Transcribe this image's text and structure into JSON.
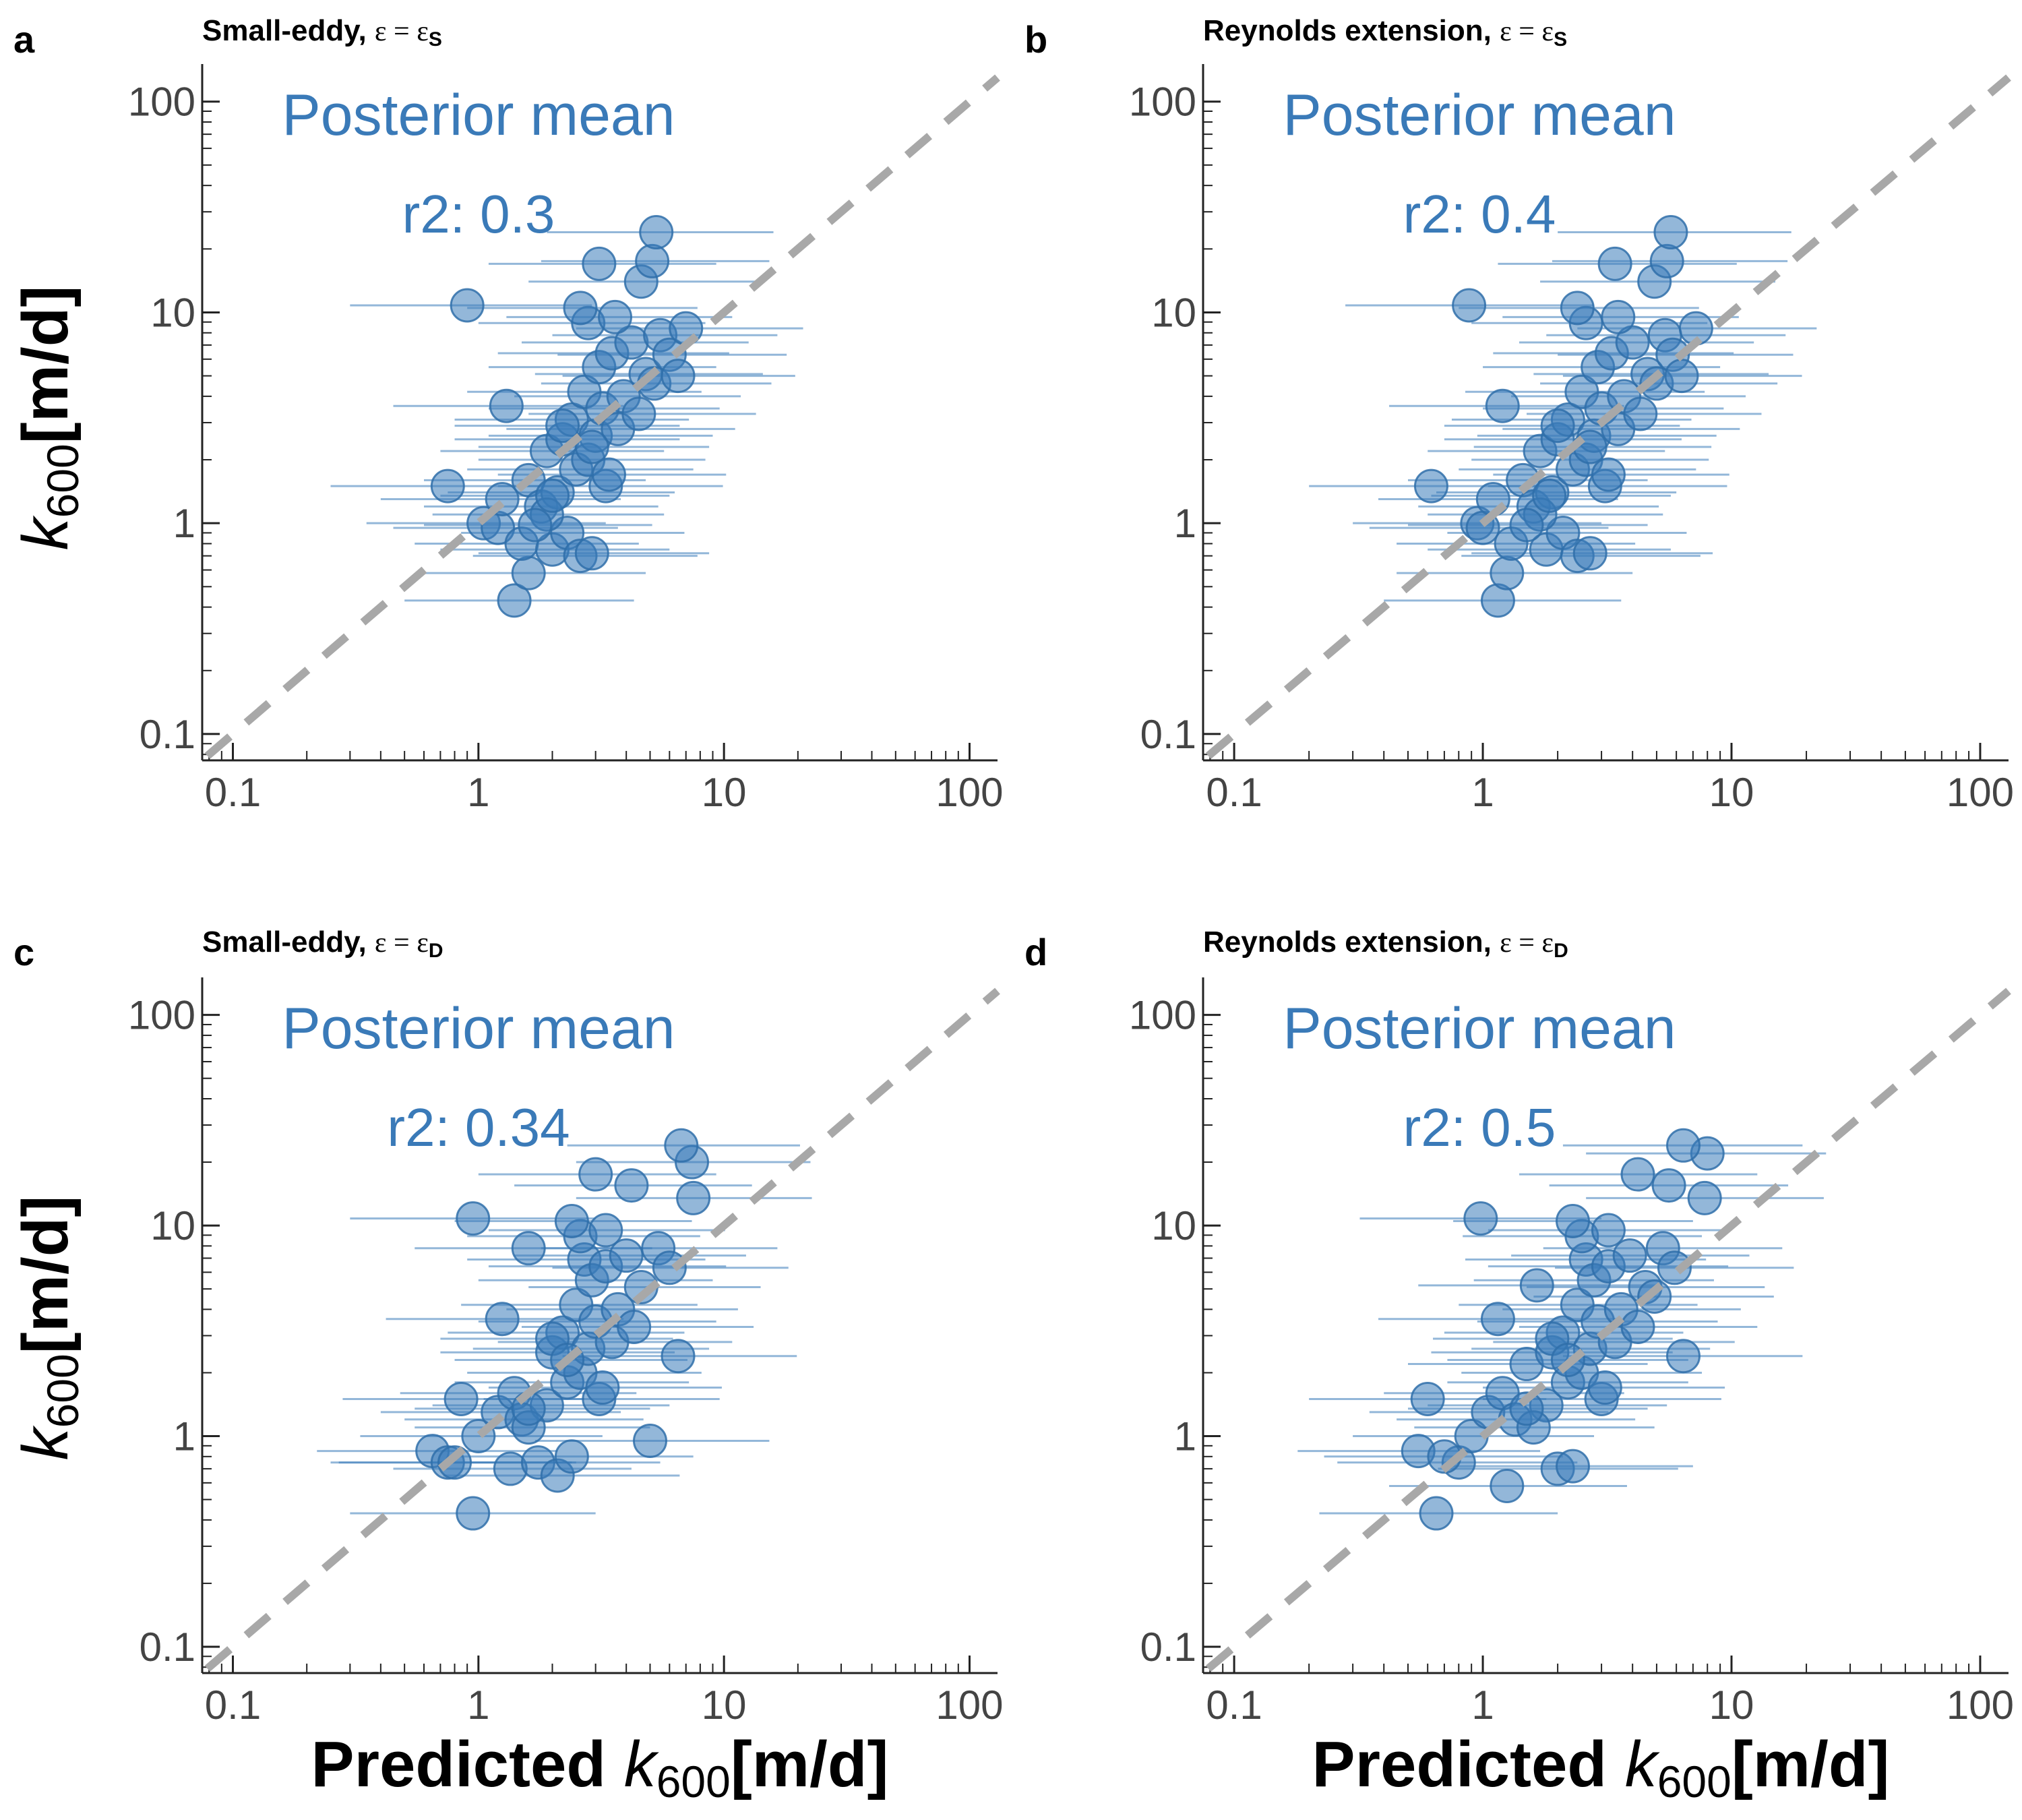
{
  "figure": {
    "common_xlabel": {
      "prefix": "Predicted ",
      "k": "k",
      "sub": "600",
      "unit": "[m/d]"
    },
    "common_ylabel": {
      "k": "k",
      "sub": "600",
      "unit": "[m/d]"
    }
  },
  "chart_data": [
    {
      "panel": "a",
      "type": "scatter",
      "title": "Small-eddy, ",
      "title_eps": "ε = ε",
      "title_sub": "S",
      "annotation": "Posterior mean",
      "r2_label": "r2: 0.3",
      "xlabel": "",
      "ylabel": "k600[m/d]",
      "xscale": "log",
      "yscale": "log",
      "xlim": [
        0.075,
        130
      ],
      "ylim": [
        0.075,
        140
      ],
      "x_ticks": [
        "0.1",
        "1",
        "10",
        "100"
      ],
      "y_ticks": [
        "0.1",
        "1",
        "10",
        "100"
      ],
      "identity_line": true,
      "x": [
        0.9,
        1.4,
        1.6,
        0.75,
        1.05,
        1.2,
        1.25,
        1.5,
        1.6,
        1.8,
        1.9,
        2.0,
        2.1,
        2.2,
        2.3,
        2.4,
        2.5,
        2.6,
        2.7,
        2.8,
        2.9,
        3.0,
        3.1,
        3.2,
        3.3,
        3.5,
        3.7,
        3.9,
        4.2,
        4.5,
        4.8,
        5.2,
        5.5,
        6.0,
        6.5,
        7.0,
        3.1,
        4.6,
        5.1,
        5.3,
        1.9,
        2.2,
        2.8,
        3.4,
        2.6,
        1.3,
        1.7,
        2.0,
        2.9,
        3.6
      ],
      "y": [
        10.8,
        0.43,
        0.58,
        1.5,
        1.0,
        0.95,
        1.3,
        0.8,
        1.6,
        1.2,
        2.2,
        0.75,
        1.4,
        2.5,
        0.9,
        3.1,
        1.8,
        0.7,
        4.2,
        2.0,
        0.72,
        2.6,
        5.5,
        3.5,
        1.5,
        6.4,
        2.8,
        4.0,
        7.2,
        3.3,
        5.1,
        4.6,
        7.8,
        6.3,
        5.0,
        8.4,
        17.0,
        14.0,
        17.5,
        24.0,
        1.1,
        2.9,
        8.9,
        1.7,
        10.5,
        3.6,
        0.98,
        1.35,
        2.3,
        9.5
      ],
      "x_lo": [
        0.3,
        0.5,
        0.6,
        0.25,
        0.35,
        0.45,
        0.4,
        0.55,
        0.6,
        0.6,
        0.7,
        0.7,
        0.75,
        0.8,
        0.85,
        0.8,
        0.9,
        0.95,
        0.9,
        1.0,
        1.0,
        1.1,
        1.1,
        1.1,
        1.2,
        1.2,
        1.3,
        1.4,
        1.5,
        1.6,
        1.7,
        1.8,
        2.0,
        2.1,
        2.2,
        2.5,
        1.1,
        1.6,
        1.8,
        1.9,
        0.65,
        0.8,
        1.0,
        1.2,
        0.9,
        0.45,
        0.6,
        0.7,
        1.0,
        1.3
      ],
      "x_hi": [
        2.9,
        4.3,
        4.8,
        2.3,
        3.3,
        3.7,
        3.8,
        4.5,
        4.8,
        5.4,
        5.7,
        6.0,
        6.3,
        6.6,
        6.9,
        7.2,
        7.5,
        7.8,
        8.1,
        8.4,
        8.7,
        9.0,
        9.3,
        9.6,
        9.9,
        10.5,
        11.1,
        11.7,
        12.6,
        13.5,
        14.4,
        15.6,
        16.5,
        18.0,
        19.5,
        21.0,
        9.3,
        13.8,
        15.3,
        15.9,
        5.7,
        6.6,
        8.4,
        10.2,
        7.8,
        3.9,
        5.1,
        6.0,
        8.7,
        10.8
      ]
    },
    {
      "panel": "b",
      "type": "scatter",
      "title": "Reynolds extension, ",
      "title_eps": "ε = ε",
      "title_sub": "S",
      "annotation": "Posterior mean",
      "r2_label": "r2: 0.4",
      "xlabel": "",
      "ylabel": "",
      "xscale": "log",
      "yscale": "log",
      "xlim": [
        0.075,
        130
      ],
      "ylim": [
        0.075,
        140
      ],
      "x_ticks": [
        "0.1",
        "1",
        "10",
        "100"
      ],
      "y_ticks": [
        "0.1",
        "1",
        "10",
        "100"
      ],
      "identity_line": true,
      "x": [
        0.88,
        1.15,
        1.25,
        0.62,
        0.95,
        1.0,
        1.1,
        1.3,
        1.45,
        1.6,
        1.7,
        1.8,
        1.9,
        2.0,
        2.1,
        2.2,
        2.3,
        2.4,
        2.5,
        2.6,
        2.7,
        2.8,
        2.9,
        3.0,
        3.1,
        3.3,
        3.5,
        3.7,
        4.0,
        4.3,
        4.6,
        5.0,
        5.4,
        5.8,
        6.3,
        7.2,
        3.4,
        4.9,
        5.5,
        5.7,
        1.7,
        2.0,
        2.6,
        3.2,
        2.4,
        1.2,
        1.5,
        1.85,
        2.7,
        3.5
      ],
      "y": [
        10.8,
        0.43,
        0.58,
        1.5,
        1.0,
        0.95,
        1.3,
        0.8,
        1.6,
        1.2,
        2.2,
        0.75,
        1.4,
        2.5,
        0.9,
        3.1,
        1.8,
        0.7,
        4.2,
        2.0,
        0.72,
        2.6,
        5.5,
        3.5,
        1.5,
        6.4,
        2.8,
        4.0,
        7.2,
        3.3,
        5.1,
        4.6,
        7.8,
        6.3,
        5.0,
        8.4,
        17.0,
        14.0,
        17.5,
        24.0,
        1.1,
        2.9,
        8.9,
        1.7,
        10.5,
        3.6,
        0.98,
        1.35,
        2.3,
        9.5
      ],
      "x_lo": [
        0.28,
        0.4,
        0.45,
        0.2,
        0.3,
        0.35,
        0.38,
        0.45,
        0.5,
        0.55,
        0.6,
        0.6,
        0.65,
        0.7,
        0.72,
        0.75,
        0.8,
        0.82,
        0.85,
        0.9,
        0.9,
        0.95,
        1.0,
        1.0,
        1.05,
        1.1,
        1.2,
        1.3,
        1.4,
        1.5,
        1.6,
        1.7,
        1.8,
        2.0,
        2.1,
        2.4,
        1.15,
        1.7,
        1.9,
        2.0,
        0.6,
        0.7,
        0.9,
        1.1,
        0.8,
        0.42,
        0.5,
        0.62,
        0.92,
        1.2
      ],
      "x_hi": [
        2.8,
        3.6,
        4.0,
        2.0,
        3.0,
        3.2,
        3.5,
        4.1,
        4.6,
        5.1,
        5.4,
        5.7,
        6.0,
        6.3,
        6.6,
        6.9,
        7.2,
        7.5,
        7.8,
        8.1,
        8.4,
        8.7,
        9.0,
        9.3,
        9.6,
        10.2,
        10.8,
        11.4,
        12.3,
        13.2,
        14.1,
        15.3,
        16.5,
        17.7,
        19.2,
        22.0,
        10.5,
        15.0,
        16.8,
        17.4,
        5.3,
        6.2,
        8.0,
        9.8,
        7.4,
        3.7,
        4.6,
        5.7,
        8.3,
        10.7
      ]
    },
    {
      "panel": "c",
      "type": "scatter",
      "title": "Small-eddy, ",
      "title_eps": "ε = ε",
      "title_sub": "D",
      "annotation": "Posterior mean",
      "r2_label": "r2: 0.34",
      "xlabel": "Predicted k600[m/d]",
      "ylabel": "k600[m/d]",
      "xscale": "log",
      "yscale": "log",
      "xlim": [
        0.075,
        130
      ],
      "ylim": [
        0.075,
        140
      ],
      "x_ticks": [
        "0.1",
        "1",
        "10",
        "100"
      ],
      "y_ticks": [
        "0.1",
        "1",
        "10",
        "100"
      ],
      "identity_line": true,
      "x": [
        0.95,
        0.95,
        1.35,
        0.65,
        0.75,
        0.85,
        1.0,
        1.2,
        1.4,
        1.5,
        1.6,
        1.75,
        1.9,
        2.0,
        2.1,
        2.2,
        2.3,
        2.4,
        2.5,
        2.6,
        2.7,
        2.8,
        2.9,
        3.0,
        3.1,
        3.3,
        3.5,
        3.7,
        4.0,
        4.3,
        4.6,
        5.0,
        5.4,
        6.0,
        6.5,
        7.5,
        3.0,
        4.2,
        7.4,
        6.7,
        1.6,
        2.0,
        2.6,
        3.2,
        2.4,
        0.8,
        1.25,
        1.6,
        2.3,
        3.3
      ],
      "y": [
        10.8,
        0.43,
        0.7,
        0.85,
        0.75,
        1.5,
        1.0,
        1.3,
        1.6,
        1.2,
        7.8,
        0.75,
        1.4,
        2.5,
        0.65,
        3.1,
        1.8,
        0.8,
        4.2,
        2.0,
        6.9,
        2.6,
        5.5,
        3.5,
        1.5,
        6.4,
        2.8,
        4.0,
        7.2,
        3.3,
        5.1,
        0.95,
        7.8,
        6.3,
        2.4,
        13.5,
        17.5,
        15.5,
        20.0,
        24.0,
        1.1,
        2.9,
        8.9,
        1.7,
        10.5,
        0.75,
        3.6,
        1.35,
        2.3,
        9.5
      ],
      "x_lo": [
        0.3,
        0.3,
        0.45,
        0.22,
        0.25,
        0.28,
        0.33,
        0.4,
        0.48,
        0.5,
        0.55,
        0.6,
        0.65,
        0.7,
        0.72,
        0.75,
        0.8,
        0.82,
        0.85,
        0.9,
        0.9,
        0.95,
        1.0,
        1.0,
        1.05,
        1.1,
        1.2,
        1.3,
        1.4,
        1.5,
        1.6,
        1.7,
        1.8,
        2.0,
        2.2,
        2.5,
        1.0,
        1.4,
        2.5,
        2.3,
        0.55,
        0.7,
        0.9,
        1.1,
        0.8,
        0.27,
        0.42,
        0.55,
        0.8,
        1.1
      ],
      "x_hi": [
        3.0,
        3.0,
        4.2,
        2.1,
        2.4,
        2.7,
        3.2,
        3.8,
        4.4,
        4.7,
        5.1,
        5.5,
        6.0,
        6.3,
        6.6,
        6.9,
        7.2,
        7.5,
        7.8,
        8.1,
        8.4,
        8.7,
        9.0,
        9.3,
        9.6,
        10.2,
        10.8,
        11.4,
        12.3,
        13.2,
        14.1,
        15.3,
        16.5,
        18.3,
        19.8,
        22.8,
        9.3,
        13.0,
        22.5,
        20.4,
        5.0,
        6.2,
        8.0,
        9.8,
        7.4,
        2.5,
        3.9,
        5.0,
        7.1,
        10.1
      ]
    },
    {
      "panel": "d",
      "type": "scatter",
      "title": "Reynolds extension, ",
      "title_eps": "ε = ε",
      "title_sub": "D",
      "annotation": "Posterior mean",
      "r2_label": "r2: 0.5",
      "xlabel": "Predicted k600[m/d]",
      "ylabel": "",
      "xscale": "log",
      "yscale": "log",
      "xlim": [
        0.075,
        130
      ],
      "ylim": [
        0.075,
        140
      ],
      "x_ticks": [
        "0.1",
        "1",
        "10",
        "100"
      ],
      "y_ticks": [
        "0.1",
        "1",
        "10",
        "100"
      ],
      "identity_line": true,
      "x": [
        0.98,
        0.65,
        1.25,
        0.55,
        0.6,
        0.8,
        0.9,
        1.05,
        1.2,
        1.35,
        1.5,
        1.65,
        1.8,
        1.9,
        2.0,
        2.1,
        2.2,
        2.3,
        2.4,
        2.5,
        2.6,
        2.7,
        2.8,
        2.9,
        3.0,
        3.2,
        3.4,
        3.6,
        3.9,
        4.2,
        4.5,
        4.9,
        5.3,
        5.9,
        6.4,
        7.8,
        4.2,
        5.6,
        8.0,
        6.4,
        1.6,
        1.9,
        2.5,
        3.1,
        2.3,
        0.7,
        1.15,
        1.5,
        2.2,
        3.2
      ],
      "y": [
        10.8,
        0.43,
        0.58,
        0.85,
        1.5,
        0.75,
        1.0,
        1.3,
        1.6,
        1.2,
        2.2,
        5.2,
        1.4,
        2.5,
        0.7,
        3.1,
        1.8,
        0.72,
        4.2,
        2.0,
        6.9,
        2.6,
        5.5,
        3.5,
        1.5,
        6.4,
        2.8,
        4.0,
        7.2,
        3.3,
        5.1,
        4.6,
        7.8,
        6.3,
        2.4,
        13.5,
        17.5,
        15.5,
        22.0,
        24.0,
        1.1,
        2.9,
        8.9,
        1.7,
        10.5,
        0.8,
        3.6,
        1.35,
        2.3,
        9.5
      ],
      "x_lo": [
        0.32,
        0.22,
        0.42,
        0.18,
        0.2,
        0.26,
        0.3,
        0.35,
        0.4,
        0.45,
        0.5,
        0.55,
        0.6,
        0.62,
        0.66,
        0.7,
        0.72,
        0.75,
        0.8,
        0.82,
        0.85,
        0.9,
        0.92,
        0.95,
        1.0,
        1.05,
        1.1,
        1.2,
        1.3,
        1.4,
        1.5,
        1.6,
        1.75,
        1.95,
        2.1,
        2.6,
        1.4,
        1.85,
        2.6,
        2.1,
        0.53,
        0.63,
        0.83,
        1.0,
        0.76,
        0.23,
        0.38,
        0.5,
        0.72,
        1.05
      ],
      "x_hi": [
        3.0,
        2.0,
        3.8,
        1.7,
        1.8,
        2.4,
        2.8,
        3.2,
        3.7,
        4.1,
        4.6,
        5.0,
        5.5,
        5.8,
        6.1,
        6.4,
        6.7,
        7.0,
        7.3,
        7.6,
        7.9,
        8.2,
        8.5,
        8.8,
        9.1,
        9.7,
        10.3,
        10.9,
        11.8,
        12.7,
        13.6,
        14.8,
        16.0,
        17.8,
        19.3,
        23.5,
        12.7,
        16.9,
        24.0,
        19.3,
        4.9,
        5.8,
        7.6,
        9.4,
        7.0,
        2.1,
        3.5,
        4.6,
        6.7,
        9.7
      ]
    }
  ],
  "colors": {
    "points": "#3b7bb9",
    "annotation": "#3a7ab8",
    "identity_line": "#a8a8a8",
    "axis": "#222222",
    "tick_labels": "#444444"
  }
}
